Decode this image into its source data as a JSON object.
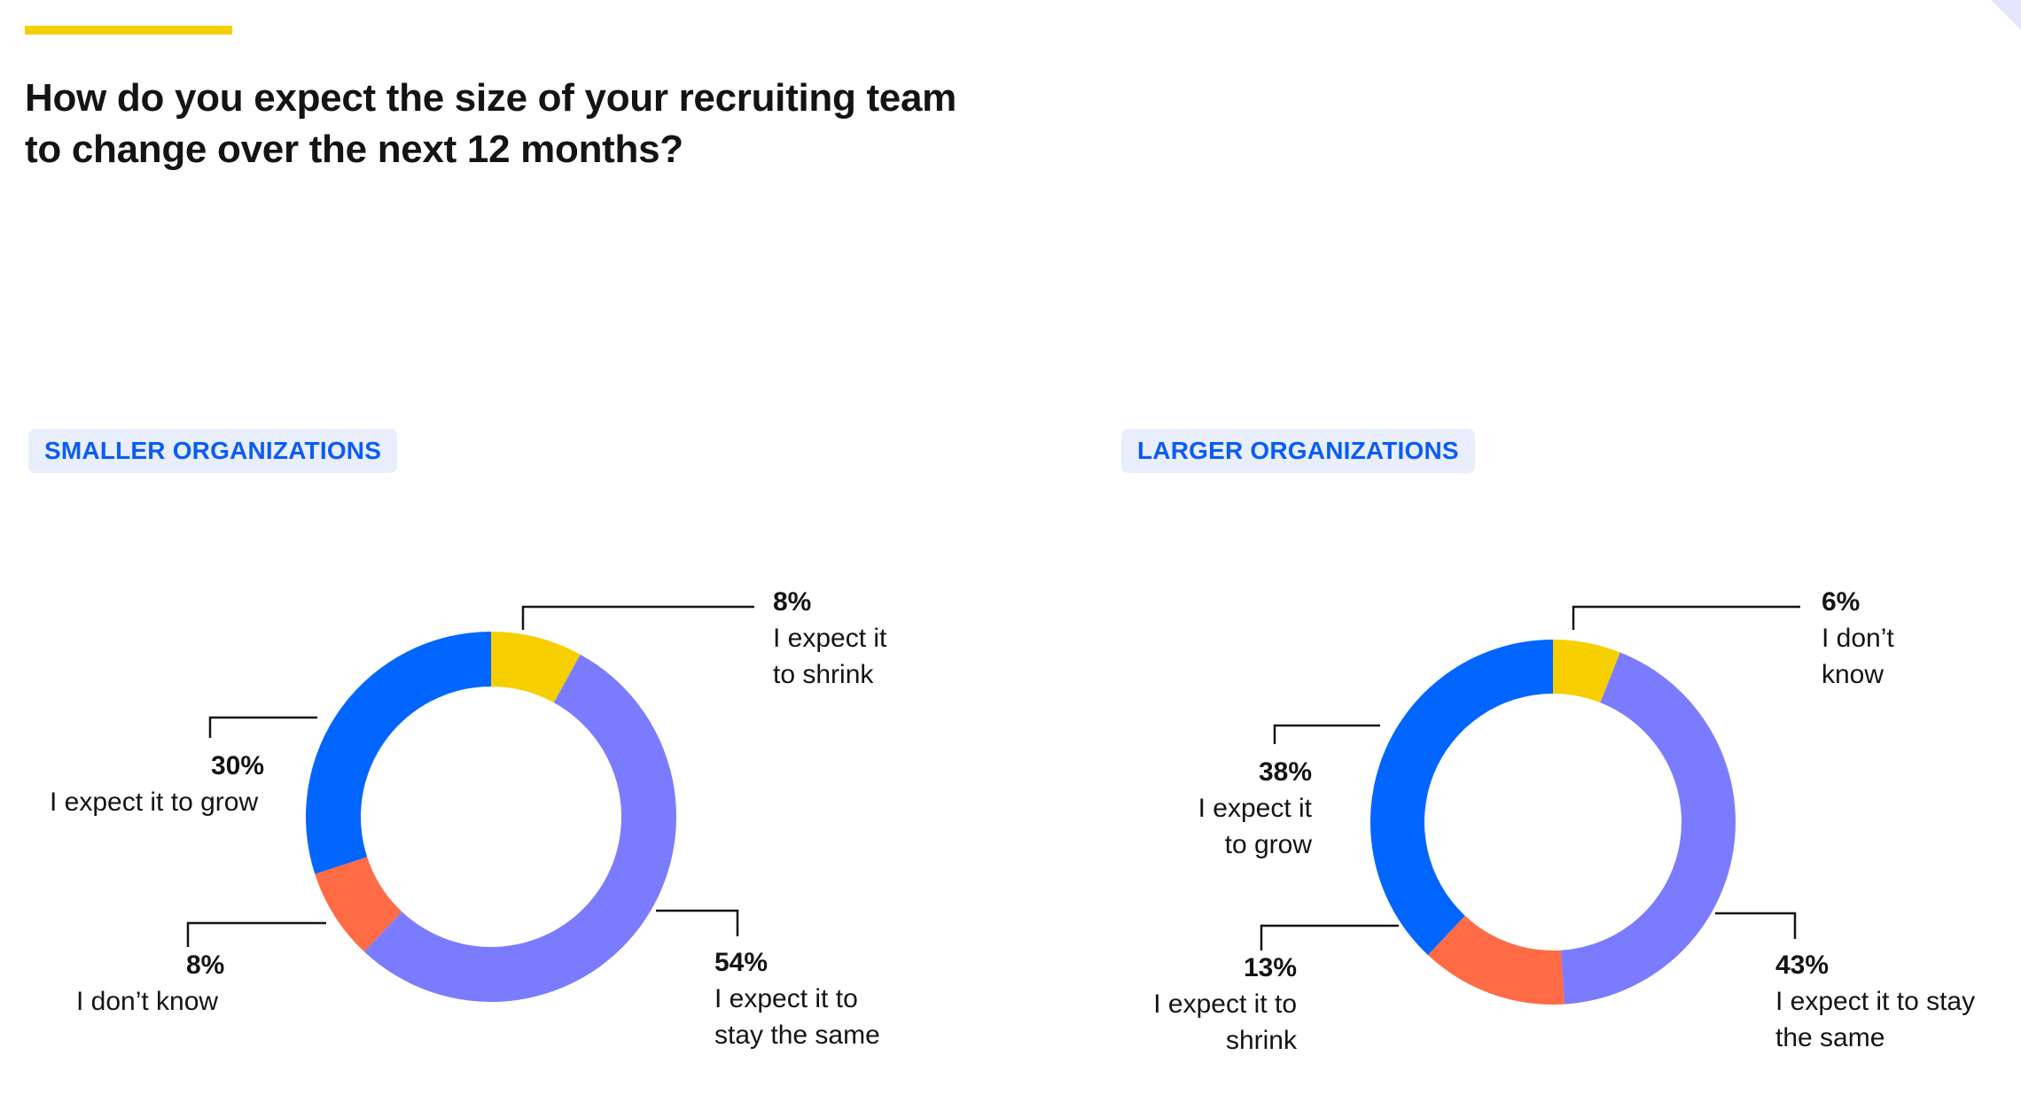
{
  "title": "How do you expect the size of your recruiting team to change over the next 12 months?",
  "colors": {
    "accent": "#F7CE00",
    "badge_text": "#0a5cf5",
    "badge_bg": "#e8eefc"
  },
  "chart_data": [
    {
      "type": "pie",
      "donut": true,
      "title": "SMALLER ORGANIZATIONS",
      "slices": [
        {
          "label": "I expect it to shrink",
          "display_label": "I expect it\nto shrink",
          "value": 8,
          "pct_text": "8%",
          "color": "#F7CE00"
        },
        {
          "label": "I expect it to stay the same",
          "display_label": "I expect it to\nstay the same",
          "value": 54,
          "pct_text": "54%",
          "color": "#7B7BFF"
        },
        {
          "label": "I don’t know",
          "display_label": "I don’t know",
          "value": 8,
          "pct_text": "8%",
          "color": "#FF6B45"
        },
        {
          "label": "I expect it to grow",
          "display_label": "I expect it to grow",
          "value": 30,
          "pct_text": "30%",
          "color": "#0066FF"
        }
      ]
    },
    {
      "type": "pie",
      "donut": true,
      "title": "LARGER ORGANIZATIONS",
      "slices": [
        {
          "label": "I don’t know",
          "display_label": "I don’t\nknow",
          "value": 6,
          "pct_text": "6%",
          "color": "#F7CE00"
        },
        {
          "label": "I expect it to stay the same",
          "display_label": "I expect it to stay\nthe same",
          "value": 43,
          "pct_text": "43%",
          "color": "#7B7BFF"
        },
        {
          "label": "I expect it to shrink",
          "display_label": "I expect it to\nshrink",
          "value": 13,
          "pct_text": "13%",
          "color": "#FF6B45"
        },
        {
          "label": "I expect it to grow",
          "display_label": "I expect it\nto grow",
          "value": 38,
          "pct_text": "38%",
          "color": "#0066FF"
        }
      ]
    }
  ]
}
